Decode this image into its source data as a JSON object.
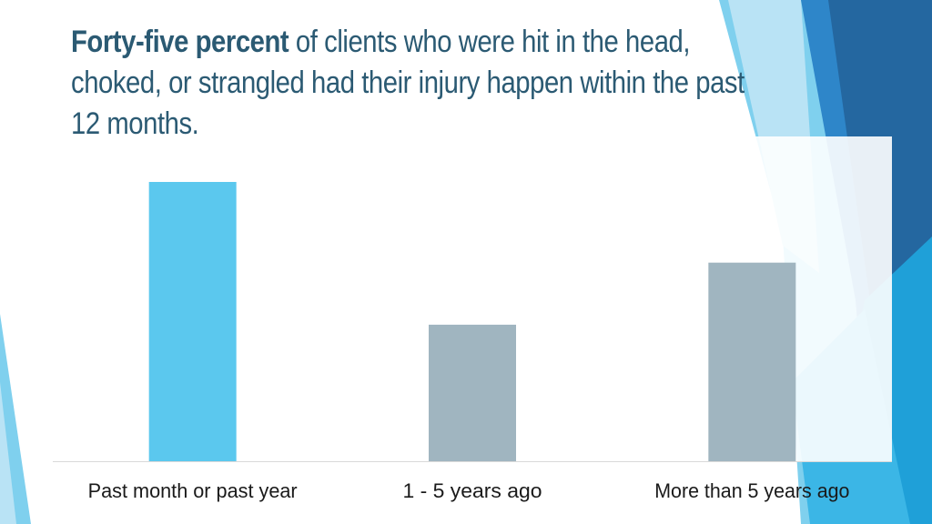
{
  "slide": {
    "title_bold": "Forty-five percent",
    "title_rest": " of clients who were hit in the head, choked, or strangled had their injury happen within the past 12 months.",
    "accent_colors": {
      "highlight_bar": "#5bc8ee",
      "neutral_bar": "#a0b5c0",
      "title_text": "#2b5a73",
      "decor_dark": "#2467a0",
      "decor_mid": "#2e86c9",
      "decor_light": "#7fd0ee",
      "decor_pale": "#b9e3f5"
    }
  },
  "chart_data": {
    "type": "bar",
    "categories": [
      "Past month or past year",
      "1 - 5 years ago",
      "More than 5 years ago"
    ],
    "values": [
      45,
      22,
      32
    ],
    "bar_colors": [
      "#5bc8ee",
      "#a0b5c0",
      "#a0b5c0"
    ],
    "title": "",
    "xlabel": "",
    "ylabel": "",
    "ylim": [
      0,
      50
    ],
    "grid": false,
    "legend": "none",
    "data_labels": false
  }
}
